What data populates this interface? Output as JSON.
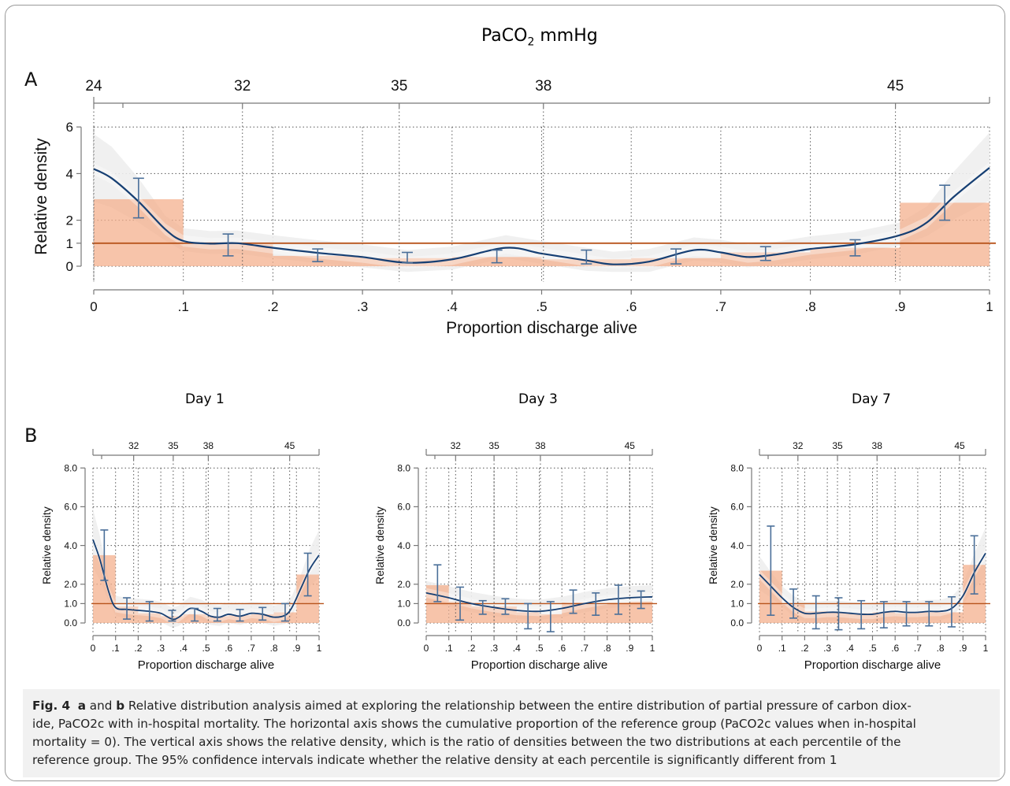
{
  "panels": {
    "A": {
      "letter": "A",
      "top_axis_title": "PaCO",
      "top_axis_sub": "2",
      "top_axis_unit": " mmHg"
    },
    "B": {
      "letter": "B"
    }
  },
  "chart_data": [
    {
      "type": "bar",
      "panel": "A",
      "xlabel": "Proportion discharge alive",
      "ylabel": "Relative density",
      "xlim": [
        0,
        1
      ],
      "ylim": [
        0,
        6
      ],
      "x_ticks": [
        "0",
        ".1",
        ".2",
        ".3",
        ".4",
        ".5",
        ".6",
        ".7",
        ".8",
        ".9",
        "1"
      ],
      "y_ticks": [
        "0",
        "1",
        "2",
        "4",
        "6"
      ],
      "top_axis": [
        {
          "label": "24",
          "at": 0.0
        },
        {
          "label": "32",
          "at": 0.166
        },
        {
          "label": "35",
          "at": 0.341
        },
        {
          "label": "38",
          "at": 0.502
        },
        {
          "label": "45",
          "at": 0.895
        }
      ],
      "reference_line": 1,
      "bars": [
        {
          "x0": 0.0,
          "x1": 0.1,
          "value": 2.9
        },
        {
          "x0": 0.1,
          "x1": 0.2,
          "value": 0.95
        },
        {
          "x0": 0.2,
          "x1": 0.3,
          "value": 0.45
        },
        {
          "x0": 0.3,
          "x1": 0.4,
          "value": 0.35
        },
        {
          "x0": 0.4,
          "x1": 0.5,
          "value": 0.4
        },
        {
          "x0": 0.5,
          "x1": 0.6,
          "value": 0.3
        },
        {
          "x0": 0.6,
          "x1": 0.7,
          "value": 0.35
        },
        {
          "x0": 0.7,
          "x1": 0.8,
          "value": 0.6
        },
        {
          "x0": 0.8,
          "x1": 0.9,
          "value": 0.8
        },
        {
          "x0": 0.9,
          "x1": 1.0,
          "value": 2.75
        }
      ],
      "error_bars": [
        {
          "x": 0.05,
          "low": 2.1,
          "high": 3.8
        },
        {
          "x": 0.15,
          "low": 0.45,
          "high": 1.4
        },
        {
          "x": 0.25,
          "low": 0.2,
          "high": 0.75
        },
        {
          "x": 0.35,
          "low": 0.15,
          "high": 0.6
        },
        {
          "x": 0.45,
          "low": 0.15,
          "high": 0.7
        },
        {
          "x": 0.55,
          "low": 0.1,
          "high": 0.7
        },
        {
          "x": 0.65,
          "low": 0.1,
          "high": 0.75
        },
        {
          "x": 0.75,
          "low": 0.25,
          "high": 0.85
        },
        {
          "x": 0.85,
          "low": 0.45,
          "high": 1.15
        },
        {
          "x": 0.95,
          "low": 2.0,
          "high": 3.5
        }
      ],
      "curve": [
        [
          0,
          4.2
        ],
        [
          0.02,
          3.8
        ],
        [
          0.05,
          2.8
        ],
        [
          0.08,
          1.6
        ],
        [
          0.1,
          1.1
        ],
        [
          0.13,
          0.98
        ],
        [
          0.16,
          1.0
        ],
        [
          0.2,
          0.8
        ],
        [
          0.25,
          0.58
        ],
        [
          0.3,
          0.4
        ],
        [
          0.35,
          0.15
        ],
        [
          0.4,
          0.3
        ],
        [
          0.46,
          0.8
        ],
        [
          0.5,
          0.55
        ],
        [
          0.55,
          0.25
        ],
        [
          0.58,
          0.08
        ],
        [
          0.62,
          0.2
        ],
        [
          0.67,
          0.7
        ],
        [
          0.7,
          0.6
        ],
        [
          0.73,
          0.4
        ],
        [
          0.76,
          0.5
        ],
        [
          0.8,
          0.75
        ],
        [
          0.85,
          0.95
        ],
        [
          0.9,
          1.35
        ],
        [
          0.93,
          1.9
        ],
        [
          0.96,
          3.0
        ],
        [
          1.0,
          4.25
        ]
      ]
    },
    {
      "type": "bar",
      "panel": "B",
      "title": "Day 1",
      "xlabel": "Proportion discharge alive",
      "ylabel": "Relative density",
      "xlim": [
        0,
        1
      ],
      "ylim": [
        0,
        8
      ],
      "x_ticks": [
        "0",
        ".1",
        ".2",
        ".3",
        ".4",
        ".5",
        ".6",
        ".7",
        ".8",
        ".9",
        "1"
      ],
      "y_ticks": [
        "0.0",
        "1.0",
        "2.0",
        "4.0",
        "6.0",
        "8.0"
      ],
      "top_axis": [
        {
          "label": "32",
          "at": 0.18
        },
        {
          "label": "35",
          "at": 0.355
        },
        {
          "label": "38",
          "at": 0.51
        },
        {
          "label": "45",
          "at": 0.87
        }
      ],
      "reference_line": 1,
      "bars": [
        {
          "x0": 0.0,
          "x1": 0.1,
          "value": 3.5
        },
        {
          "x0": 0.1,
          "x1": 0.2,
          "value": 0.85
        },
        {
          "x0": 0.2,
          "x1": 0.3,
          "value": 0.5
        },
        {
          "x0": 0.3,
          "x1": 0.4,
          "value": 0.35
        },
        {
          "x0": 0.4,
          "x1": 0.5,
          "value": 0.45
        },
        {
          "x0": 0.5,
          "x1": 0.6,
          "value": 0.35
        },
        {
          "x0": 0.6,
          "x1": 0.7,
          "value": 0.4
        },
        {
          "x0": 0.7,
          "x1": 0.8,
          "value": 0.45
        },
        {
          "x0": 0.8,
          "x1": 0.9,
          "value": 0.55
        },
        {
          "x0": 0.9,
          "x1": 1.0,
          "value": 2.5
        }
      ],
      "error_bars": [
        {
          "x": 0.05,
          "low": 2.2,
          "high": 4.8
        },
        {
          "x": 0.15,
          "low": 0.2,
          "high": 1.3
        },
        {
          "x": 0.25,
          "low": 0.1,
          "high": 1.1
        },
        {
          "x": 0.35,
          "low": 0.1,
          "high": 0.65
        },
        {
          "x": 0.45,
          "low": 0.1,
          "high": 0.75
        },
        {
          "x": 0.55,
          "low": 0.1,
          "high": 0.75
        },
        {
          "x": 0.65,
          "low": 0.1,
          "high": 0.7
        },
        {
          "x": 0.75,
          "low": 0.15,
          "high": 0.8
        },
        {
          "x": 0.85,
          "low": 0.1,
          "high": 1.0
        },
        {
          "x": 0.95,
          "low": 1.4,
          "high": 3.6
        }
      ],
      "curve": [
        [
          0,
          4.3
        ],
        [
          0.03,
          3.3
        ],
        [
          0.07,
          1.6
        ],
        [
          0.1,
          0.8
        ],
        [
          0.15,
          0.7
        ],
        [
          0.2,
          0.65
        ],
        [
          0.25,
          0.6
        ],
        [
          0.3,
          0.5
        ],
        [
          0.35,
          0.2
        ],
        [
          0.38,
          0.3
        ],
        [
          0.43,
          0.75
        ],
        [
          0.48,
          0.6
        ],
        [
          0.52,
          0.35
        ],
        [
          0.56,
          0.3
        ],
        [
          0.6,
          0.45
        ],
        [
          0.65,
          0.35
        ],
        [
          0.7,
          0.5
        ],
        [
          0.75,
          0.45
        ],
        [
          0.8,
          0.3
        ],
        [
          0.85,
          0.4
        ],
        [
          0.88,
          0.8
        ],
        [
          0.92,
          1.8
        ],
        [
          0.96,
          2.8
        ],
        [
          1.0,
          3.5
        ]
      ]
    },
    {
      "type": "bar",
      "panel": "B",
      "title": "Day 3",
      "xlabel": "Proportion discharge alive",
      "ylabel": "Relative density",
      "xlim": [
        0,
        1
      ],
      "ylim": [
        0,
        8
      ],
      "x_ticks": [
        "0",
        ".1",
        ".2",
        ".3",
        ".4",
        ".5",
        ".6",
        ".7",
        ".8",
        ".9",
        "1"
      ],
      "y_ticks": [
        "0.0",
        "1.0",
        "2.0",
        "4.0",
        "6.0",
        "8.0"
      ],
      "top_axis": [
        {
          "label": "32",
          "at": 0.13
        },
        {
          "label": "35",
          "at": 0.3
        },
        {
          "label": "38",
          "at": 0.505
        },
        {
          "label": "45",
          "at": 0.9
        }
      ],
      "reference_line": 1,
      "bars": [
        {
          "x0": 0.0,
          "x1": 0.1,
          "value": 1.95
        },
        {
          "x0": 0.1,
          "x1": 0.2,
          "value": 1.1
        },
        {
          "x0": 0.2,
          "x1": 0.3,
          "value": 0.85
        },
        {
          "x0": 0.3,
          "x1": 0.4,
          "value": 0.85
        },
        {
          "x0": 0.4,
          "x1": 0.5,
          "value": 0.55
        },
        {
          "x0": 0.5,
          "x1": 0.6,
          "value": 0.45
        },
        {
          "x0": 0.6,
          "x1": 0.7,
          "value": 1.05
        },
        {
          "x0": 0.7,
          "x1": 0.8,
          "value": 0.95
        },
        {
          "x0": 0.8,
          "x1": 0.9,
          "value": 1.05
        },
        {
          "x0": 0.9,
          "x1": 1.0,
          "value": 1.1
        }
      ],
      "error_bars": [
        {
          "x": 0.05,
          "low": 1.1,
          "high": 3.0
        },
        {
          "x": 0.15,
          "low": 0.15,
          "high": 1.85
        },
        {
          "x": 0.25,
          "low": 0.45,
          "high": 1.15
        },
        {
          "x": 0.35,
          "low": 0.45,
          "high": 1.25
        },
        {
          "x": 0.45,
          "low": -0.3,
          "high": 1.0
        },
        {
          "x": 0.55,
          "low": -0.45,
          "high": 1.1
        },
        {
          "x": 0.65,
          "low": 0.5,
          "high": 1.7
        },
        {
          "x": 0.75,
          "low": 0.4,
          "high": 1.55
        },
        {
          "x": 0.85,
          "low": 0.45,
          "high": 1.95
        },
        {
          "x": 0.95,
          "low": 0.75,
          "high": 1.65
        }
      ],
      "curve": [
        [
          0,
          1.55
        ],
        [
          0.1,
          1.3
        ],
        [
          0.2,
          1.0
        ],
        [
          0.3,
          0.8
        ],
        [
          0.4,
          0.65
        ],
        [
          0.5,
          0.6
        ],
        [
          0.6,
          0.75
        ],
        [
          0.7,
          1.0
        ],
        [
          0.8,
          1.2
        ],
        [
          0.9,
          1.3
        ],
        [
          1.0,
          1.35
        ]
      ]
    },
    {
      "type": "bar",
      "panel": "B",
      "title": "Day 7",
      "xlabel": "Proportion discharge alive",
      "ylabel": "Relative density",
      "xlim": [
        0,
        1
      ],
      "ylim": [
        0,
        8
      ],
      "x_ticks": [
        "0",
        ".1",
        ".2",
        ".3",
        ".4",
        ".5",
        ".6",
        ".7",
        ".8",
        ".9",
        "1"
      ],
      "y_ticks": [
        "0.0",
        "1.0",
        "2.0",
        "4.0",
        "6.0",
        "8.0"
      ],
      "top_axis": [
        {
          "label": "32",
          "at": 0.17
        },
        {
          "label": "35",
          "at": 0.345
        },
        {
          "label": "38",
          "at": 0.52
        },
        {
          "label": "45",
          "at": 0.885
        }
      ],
      "reference_line": 1,
      "bars": [
        {
          "x0": 0.0,
          "x1": 0.1,
          "value": 2.7
        },
        {
          "x0": 0.1,
          "x1": 0.2,
          "value": 0.95
        },
        {
          "x0": 0.2,
          "x1": 0.3,
          "value": 0.6
        },
        {
          "x0": 0.3,
          "x1": 0.4,
          "value": 0.55
        },
        {
          "x0": 0.4,
          "x1": 0.5,
          "value": 0.5
        },
        {
          "x0": 0.5,
          "x1": 0.6,
          "value": 0.55
        },
        {
          "x0": 0.6,
          "x1": 0.7,
          "value": 0.5
        },
        {
          "x0": 0.7,
          "x1": 0.8,
          "value": 0.55
        },
        {
          "x0": 0.8,
          "x1": 0.9,
          "value": 0.55
        },
        {
          "x0": 0.9,
          "x1": 1.0,
          "value": 3.0
        }
      ],
      "error_bars": [
        {
          "x": 0.05,
          "low": 0.4,
          "high": 5.0
        },
        {
          "x": 0.15,
          "low": 0.25,
          "high": 1.75
        },
        {
          "x": 0.25,
          "low": -0.3,
          "high": 1.4
        },
        {
          "x": 0.35,
          "low": -0.35,
          "high": 1.3
        },
        {
          "x": 0.45,
          "low": -0.3,
          "high": 1.15
        },
        {
          "x": 0.55,
          "low": -0.25,
          "high": 1.1
        },
        {
          "x": 0.65,
          "low": -0.15,
          "high": 1.1
        },
        {
          "x": 0.75,
          "low": -0.15,
          "high": 1.1
        },
        {
          "x": 0.85,
          "low": -0.2,
          "high": 1.35
        },
        {
          "x": 0.95,
          "low": 1.5,
          "high": 4.5
        }
      ],
      "curve": [
        [
          0,
          2.5
        ],
        [
          0.05,
          1.9
        ],
        [
          0.1,
          1.3
        ],
        [
          0.15,
          0.8
        ],
        [
          0.2,
          0.5
        ],
        [
          0.25,
          0.5
        ],
        [
          0.3,
          0.55
        ],
        [
          0.35,
          0.55
        ],
        [
          0.4,
          0.5
        ],
        [
          0.45,
          0.45
        ],
        [
          0.5,
          0.45
        ],
        [
          0.55,
          0.55
        ],
        [
          0.6,
          0.6
        ],
        [
          0.65,
          0.55
        ],
        [
          0.7,
          0.55
        ],
        [
          0.75,
          0.6
        ],
        [
          0.8,
          0.6
        ],
        [
          0.85,
          0.75
        ],
        [
          0.9,
          1.4
        ],
        [
          0.95,
          2.6
        ],
        [
          1.0,
          3.6
        ]
      ]
    }
  ],
  "caption": {
    "fig_label": "Fig. 4",
    "a": "a",
    "and": " and ",
    "b": "b",
    "line1": " Relative distribution analysis aimed at exploring the relationship between the entire distribution of partial pressure of carbon diox-",
    "line2": "ide, PaCO2c with in-hospital mortality. The horizontal axis shows the cumulative proportion of the reference group (PaCO2c values when in-hospital",
    "line3": "mortality = 0). The vertical axis shows the relative density, which is the ratio of densities between the two distributions at each percentile of the",
    "line4": "reference group. The 95% confidence intervals indicate whether the relative density at each percentile is significantly different from 1"
  },
  "colors": {
    "bar": "#f4b08d",
    "bar_light": "#fad9c7",
    "band_outer": "#eeeeee",
    "band_inner": "#f6e1d4",
    "curve": "#163f73",
    "errorbar": "#4a6f99",
    "reference": "#b8541c",
    "axis": "#777777"
  }
}
